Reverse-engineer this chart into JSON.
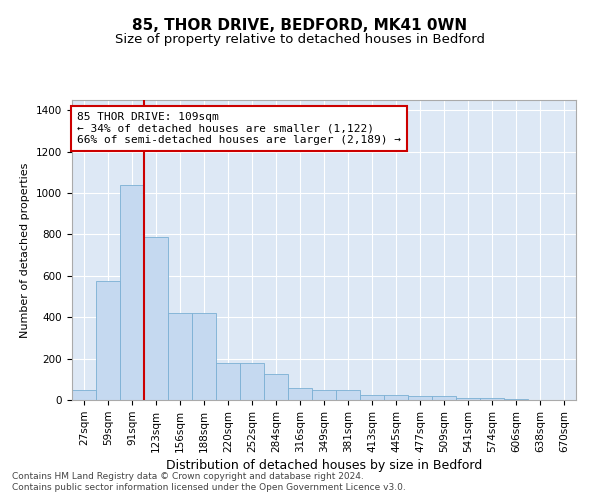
{
  "title": "85, THOR DRIVE, BEDFORD, MK41 0WN",
  "subtitle": "Size of property relative to detached houses in Bedford",
  "xlabel": "Distribution of detached houses by size in Bedford",
  "ylabel": "Number of detached properties",
  "categories": [
    "27sqm",
    "59sqm",
    "91sqm",
    "123sqm",
    "156sqm",
    "188sqm",
    "220sqm",
    "252sqm",
    "284sqm",
    "316sqm",
    "349sqm",
    "381sqm",
    "413sqm",
    "445sqm",
    "477sqm",
    "509sqm",
    "541sqm",
    "574sqm",
    "606sqm",
    "638sqm",
    "670sqm"
  ],
  "values": [
    50,
    575,
    1040,
    790,
    420,
    420,
    180,
    180,
    125,
    60,
    50,
    50,
    25,
    25,
    20,
    20,
    12,
    12,
    5,
    0,
    0
  ],
  "bar_color": "#c5d9f0",
  "bar_edge_color": "#7bafd4",
  "vline_color": "#cc0000",
  "vline_pos": 2.5,
  "annotation_text": "85 THOR DRIVE: 109sqm\n← 34% of detached houses are smaller (1,122)\n66% of semi-detached houses are larger (2,189) →",
  "annotation_box_facecolor": "#ffffff",
  "annotation_box_edgecolor": "#cc0000",
  "ylim": [
    0,
    1450
  ],
  "yticks": [
    0,
    200,
    400,
    600,
    800,
    1000,
    1200,
    1400
  ],
  "bg_color": "#dde8f5",
  "grid_color": "#ffffff",
  "footer_line1": "Contains HM Land Registry data © Crown copyright and database right 2024.",
  "footer_line2": "Contains public sector information licensed under the Open Government Licence v3.0.",
  "title_fontsize": 11,
  "subtitle_fontsize": 9.5,
  "xlabel_fontsize": 9,
  "ylabel_fontsize": 8,
  "annot_fontsize": 8,
  "tick_fontsize": 7.5,
  "footer_fontsize": 6.5
}
